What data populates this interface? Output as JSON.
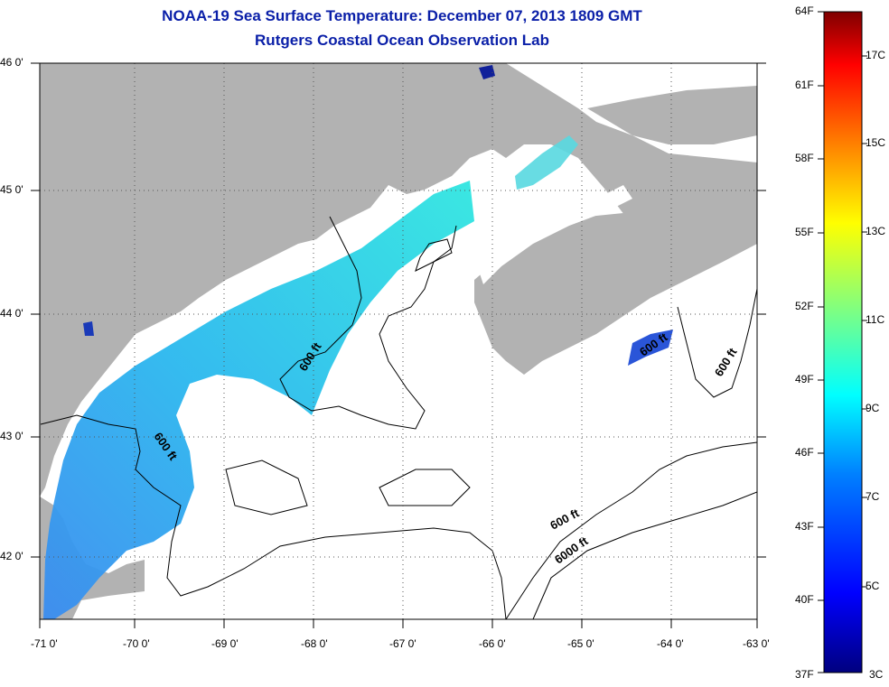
{
  "title": "NOAA-19 Sea Surface Temperature:  December 07, 2013 1809 GMT",
  "subtitle": "Rutgers Coastal Ocean Observation Lab",
  "lat_labels": [
    "46 0'",
    "45 0'",
    "44 0'",
    "43 0'",
    "42 0'"
  ],
  "lon_labels": [
    "-71 0'",
    "-70 0'",
    "-69 0'",
    "-68 0'",
    "-67 0'",
    "-66 0'",
    "-65 0'",
    "-64 0'",
    "-63 0'"
  ],
  "contour_labels": [
    "600 ft",
    "600 ft",
    "600 ft",
    "600 ft",
    "6000 ft"
  ],
  "colorbar": {
    "f_labels": [
      "64F",
      "61F",
      "58F",
      "55F",
      "52F",
      "49F",
      "46F",
      "43F",
      "40F",
      "37F"
    ],
    "c_labels": [
      "17C",
      "15C",
      "13C",
      "11C",
      "9C",
      "7C",
      "5C",
      "3C"
    ],
    "colors": [
      "#00007f",
      "#0000ff",
      "#0080ff",
      "#00ffff",
      "#80ff80",
      "#ffff00",
      "#ff8000",
      "#ff0000",
      "#7f0000"
    ]
  },
  "map_colors": {
    "land": "#b2b2b2",
    "ocean": "#ffffff",
    "sst_warm": "#22e0e0",
    "sst_mid": "#3aa8f0",
    "sst_cool": "#1a5ae0"
  }
}
